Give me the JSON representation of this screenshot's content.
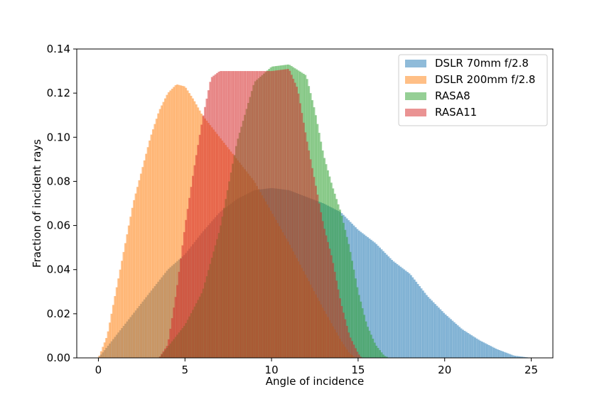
{
  "chart_data": {
    "type": "histogram",
    "xlabel": "Angle of incidence",
    "ylabel": "Fraction of incident rays",
    "xlim": [
      -1.25,
      26.25
    ],
    "ylim": [
      0,
      0.14
    ],
    "xticks": [
      0,
      5,
      10,
      15,
      20,
      25
    ],
    "xtick_labels": [
      "0",
      "5",
      "10",
      "15",
      "20",
      "25"
    ],
    "yticks": [
      0.0,
      0.02,
      0.04,
      0.06,
      0.08,
      0.1,
      0.12,
      0.14
    ],
    "ytick_labels": [
      "0.00",
      "0.02",
      "0.04",
      "0.06",
      "0.08",
      "0.10",
      "0.12",
      "0.14"
    ],
    "grid": false,
    "legend_position": "top-right",
    "bin_width": 0.1,
    "series": [
      {
        "name": "DSLR 70mm f/2.8",
        "color": "#1f77b4",
        "opacity": 0.5,
        "profile": [
          [
            0.0,
            0.0
          ],
          [
            0.1,
            0.001
          ],
          [
            1.0,
            0.01
          ],
          [
            2.0,
            0.02
          ],
          [
            3.0,
            0.03
          ],
          [
            4.0,
            0.04
          ],
          [
            5.0,
            0.047
          ],
          [
            6.0,
            0.057
          ],
          [
            7.0,
            0.066
          ],
          [
            8.0,
            0.072
          ],
          [
            9.0,
            0.076
          ],
          [
            10.0,
            0.077
          ],
          [
            11.0,
            0.076
          ],
          [
            12.0,
            0.073
          ],
          [
            13.0,
            0.07
          ],
          [
            14.0,
            0.066
          ],
          [
            15.0,
            0.058
          ],
          [
            16.0,
            0.052
          ],
          [
            17.0,
            0.044
          ],
          [
            18.0,
            0.038
          ],
          [
            19.0,
            0.028
          ],
          [
            20.0,
            0.02
          ],
          [
            21.0,
            0.013
          ],
          [
            22.0,
            0.008
          ],
          [
            23.0,
            0.004
          ],
          [
            24.0,
            0.001
          ],
          [
            25.0,
            0.0
          ]
        ]
      },
      {
        "name": "DSLR 200mm f/2.8",
        "color": "#ff7f0e",
        "opacity": 0.5,
        "profile": [
          [
            0.0,
            0.0
          ],
          [
            0.1,
            0.002
          ],
          [
            0.5,
            0.01
          ],
          [
            1.0,
            0.03
          ],
          [
            1.5,
            0.05
          ],
          [
            2.0,
            0.07
          ],
          [
            2.5,
            0.085
          ],
          [
            3.0,
            0.1
          ],
          [
            3.5,
            0.112
          ],
          [
            4.0,
            0.12
          ],
          [
            4.5,
            0.124
          ],
          [
            5.0,
            0.123
          ],
          [
            5.5,
            0.117
          ],
          [
            6.0,
            0.11
          ],
          [
            7.0,
            0.1
          ],
          [
            8.0,
            0.09
          ],
          [
            9.0,
            0.08
          ],
          [
            10.0,
            0.066
          ],
          [
            11.0,
            0.052
          ],
          [
            12.0,
            0.037
          ],
          [
            13.0,
            0.022
          ],
          [
            14.0,
            0.008
          ],
          [
            14.5,
            0.002
          ],
          [
            14.9,
            0.0
          ]
        ]
      },
      {
        "name": "RASA8",
        "color": "#2ca02c",
        "opacity": 0.5,
        "profile": [
          [
            3.5,
            0.0
          ],
          [
            4.0,
            0.005
          ],
          [
            5.0,
            0.015
          ],
          [
            6.0,
            0.03
          ],
          [
            7.0,
            0.058
          ],
          [
            8.0,
            0.098
          ],
          [
            9.0,
            0.125
          ],
          [
            10.0,
            0.132
          ],
          [
            11.0,
            0.133
          ],
          [
            12.0,
            0.128
          ],
          [
            12.5,
            0.112
          ],
          [
            13.0,
            0.092
          ],
          [
            13.5,
            0.078
          ],
          [
            14.0,
            0.066
          ],
          [
            14.5,
            0.05
          ],
          [
            15.0,
            0.03
          ],
          [
            15.5,
            0.015
          ],
          [
            16.0,
            0.006
          ],
          [
            16.5,
            0.001
          ],
          [
            16.8,
            0.0
          ]
        ]
      },
      {
        "name": "RASA11",
        "color": "#d62728",
        "opacity": 0.5,
        "profile": [
          [
            3.5,
            0.0
          ],
          [
            4.0,
            0.006
          ],
          [
            4.5,
            0.03
          ],
          [
            5.0,
            0.06
          ],
          [
            5.5,
            0.085
          ],
          [
            6.0,
            0.108
          ],
          [
            6.5,
            0.127
          ],
          [
            7.0,
            0.13
          ],
          [
            8.0,
            0.13
          ],
          [
            9.0,
            0.13
          ],
          [
            10.0,
            0.13
          ],
          [
            11.0,
            0.131
          ],
          [
            11.5,
            0.122
          ],
          [
            12.0,
            0.1
          ],
          [
            12.5,
            0.08
          ],
          [
            13.0,
            0.06
          ],
          [
            13.5,
            0.045
          ],
          [
            14.0,
            0.025
          ],
          [
            14.5,
            0.01
          ],
          [
            15.0,
            0.002
          ],
          [
            15.2,
            0.0
          ]
        ]
      }
    ]
  }
}
